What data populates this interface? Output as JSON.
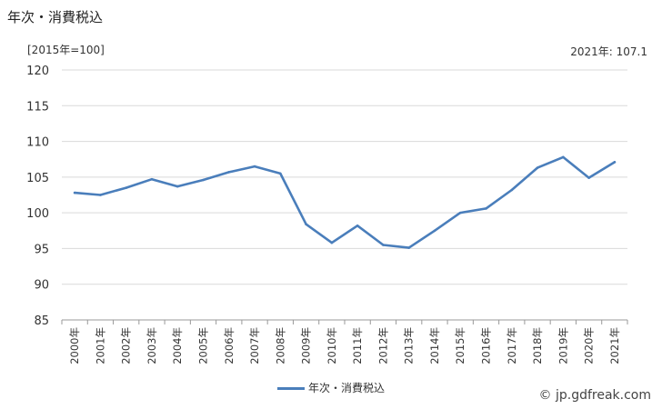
{
  "chart_data": {
    "type": "line",
    "title": "年次・消費税込",
    "unit_label": "[2015年=100]",
    "latest_value_label": "2021年: 107.1",
    "categories": [
      "2000年",
      "2001年",
      "2002年",
      "2003年",
      "2004年",
      "2005年",
      "2006年",
      "2007年",
      "2008年",
      "2009年",
      "2010年",
      "2011年",
      "2012年",
      "2013年",
      "2014年",
      "2015年",
      "2016年",
      "2017年",
      "2018年",
      "2019年",
      "2020年",
      "2021年"
    ],
    "series": [
      {
        "name": "年次・消費税込",
        "color": "#4a7ebb",
        "values": [
          102.8,
          102.5,
          103.5,
          104.7,
          103.7,
          104.6,
          105.7,
          106.5,
          105.5,
          98.4,
          95.8,
          98.2,
          95.5,
          95.1,
          97.5,
          100.0,
          100.6,
          103.2,
          106.3,
          107.8,
          104.9,
          107.1
        ]
      }
    ],
    "ylim": [
      85,
      120
    ],
    "yticks": [
      85,
      90,
      95,
      100,
      105,
      110,
      115,
      120
    ],
    "grid": true,
    "legend": "bottom-center"
  },
  "source": "© jp.gdfreak.com"
}
